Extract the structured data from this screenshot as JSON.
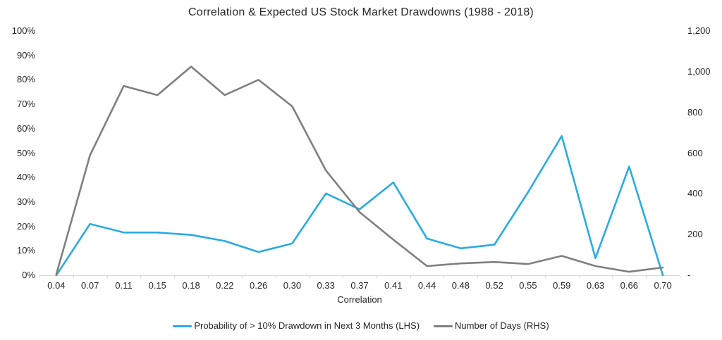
{
  "colors": {
    "series1": "#29ABE2",
    "series2": "#7F7F7F",
    "axis_line": "#D9D9D9",
    "text": "#262626",
    "background": "#FFFFFF"
  },
  "chart_data": {
    "type": "line",
    "title": "Correlation & Expected US Stock Market Drawdowns (1988 - 2018)",
    "xlabel": "Correlation",
    "ylabel_left": "",
    "ylabel_right": "",
    "grid": false,
    "legend_position": "bottom",
    "categories": [
      "0.04",
      "0.07",
      "0.11",
      "0.15",
      "0.18",
      "0.22",
      "0.26",
      "0.30",
      "0.33",
      "0.37",
      "0.41",
      "0.44",
      "0.48",
      "0.52",
      "0.55",
      "0.59",
      "0.63",
      "0.66",
      "0.70"
    ],
    "series": [
      {
        "name": "Probability of > 10% Drawdown in Next 3 Months (LHS)",
        "axis": "left",
        "color": "#29ABE2",
        "values": [
          0,
          21,
          17.5,
          17.5,
          16.5,
          14,
          9.5,
          13,
          33.5,
          27,
          38,
          15,
          11,
          12.5,
          34,
          57,
          7,
          44.5,
          0
        ]
      },
      {
        "name": "Number of Days (RHS)",
        "axis": "right",
        "color": "#7F7F7F",
        "values": [
          5,
          590,
          930,
          885,
          1025,
          885,
          960,
          830,
          515,
          310,
          175,
          45,
          58,
          65,
          55,
          95,
          45,
          17,
          38
        ]
      }
    ],
    "left_axis": {
      "min": 0,
      "max": 100,
      "ticks": [
        "0%",
        "10%",
        "20%",
        "30%",
        "40%",
        "50%",
        "60%",
        "70%",
        "80%",
        "90%",
        "100%"
      ]
    },
    "right_axis": {
      "min": 0,
      "max": 1200,
      "ticks": [
        "-",
        "200",
        "400",
        "600",
        "800",
        "1,000",
        "1,200"
      ]
    }
  }
}
